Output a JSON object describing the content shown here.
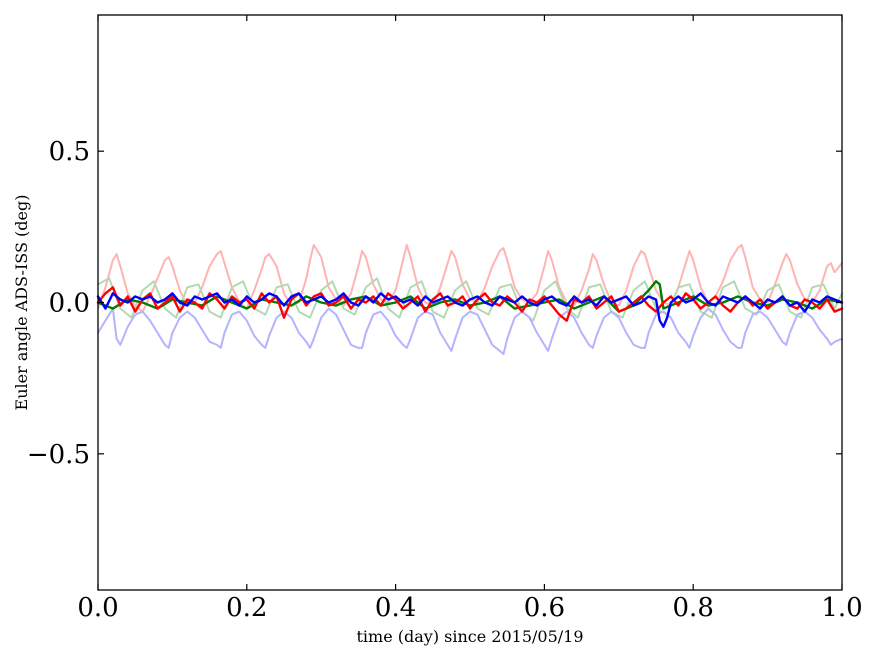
{
  "chart_data": {
    "type": "line",
    "title": "",
    "xlabel": "time (day) since 2015/05/19",
    "ylabel": "Euler angle ADS-ISS (deg)",
    "xlim": [
      0.0,
      1.0
    ],
    "ylim": [
      -0.95,
      0.95
    ],
    "xticks": [
      0.0,
      0.2,
      0.4,
      0.6,
      0.8,
      1.0
    ],
    "xtick_labels": [
      "0.0",
      "0.2",
      "0.4",
      "0.6",
      "0.8",
      "1.0"
    ],
    "yticks": [
      -0.5,
      0.0,
      0.5
    ],
    "ytick_labels": [
      "−0.5",
      "0.0",
      "0.5"
    ],
    "grid": false,
    "legend": "none",
    "series": [
      {
        "color": "#ffb3b3",
        "opacity": 1.0,
        "line_width": 2,
        "x": [
          0.0,
          0.01,
          0.02,
          0.025,
          0.03,
          0.04,
          0.05,
          0.06,
          0.07,
          0.08,
          0.09,
          0.095,
          0.1,
          0.11,
          0.12,
          0.13,
          0.14,
          0.15,
          0.16,
          0.165,
          0.17,
          0.18,
          0.19,
          0.2,
          0.21,
          0.22,
          0.225,
          0.23,
          0.24,
          0.25,
          0.26,
          0.27,
          0.28,
          0.285,
          0.29,
          0.3,
          0.31,
          0.32,
          0.33,
          0.34,
          0.35,
          0.355,
          0.36,
          0.37,
          0.38,
          0.39,
          0.4,
          0.41,
          0.415,
          0.42,
          0.43,
          0.44,
          0.45,
          0.46,
          0.47,
          0.475,
          0.48,
          0.49,
          0.5,
          0.51,
          0.52,
          0.53,
          0.54,
          0.545,
          0.55,
          0.56,
          0.57,
          0.58,
          0.59,
          0.6,
          0.605,
          0.61,
          0.62,
          0.63,
          0.64,
          0.65,
          0.66,
          0.665,
          0.67,
          0.68,
          0.69,
          0.7,
          0.71,
          0.72,
          0.73,
          0.735,
          0.74,
          0.75,
          0.76,
          0.77,
          0.78,
          0.79,
          0.795,
          0.8,
          0.81,
          0.82,
          0.83,
          0.84,
          0.85,
          0.86,
          0.865,
          0.87,
          0.88,
          0.89,
          0.9,
          0.91,
          0.92,
          0.925,
          0.93,
          0.94,
          0.95,
          0.96,
          0.97,
          0.98,
          0.985,
          0.99,
          1.0
        ],
        "y": [
          -0.02,
          0.05,
          0.14,
          0.16,
          0.12,
          0.03,
          -0.01,
          -0.03,
          0.02,
          0.08,
          0.14,
          0.15,
          0.12,
          0.04,
          -0.01,
          0.0,
          0.05,
          0.12,
          0.16,
          0.17,
          0.13,
          0.05,
          0.0,
          -0.02,
          0.04,
          0.11,
          0.15,
          0.16,
          0.12,
          0.03,
          -0.01,
          0.0,
          0.08,
          0.14,
          0.19,
          0.15,
          0.05,
          0.01,
          -0.01,
          0.03,
          0.12,
          0.17,
          0.15,
          0.06,
          0.01,
          0.0,
          0.04,
          0.14,
          0.19,
          0.15,
          0.05,
          0.0,
          -0.01,
          0.05,
          0.13,
          0.17,
          0.15,
          0.06,
          0.01,
          0.0,
          0.05,
          0.12,
          0.17,
          0.18,
          0.14,
          0.05,
          0.01,
          0.0,
          0.03,
          0.12,
          0.17,
          0.14,
          0.05,
          0.0,
          -0.01,
          0.04,
          0.11,
          0.16,
          0.14,
          0.06,
          0.0,
          -0.01,
          0.04,
          0.12,
          0.17,
          0.16,
          0.12,
          0.04,
          0.0,
          -0.01,
          0.05,
          0.13,
          0.17,
          0.14,
          0.05,
          0.0,
          0.02,
          0.07,
          0.14,
          0.18,
          0.19,
          0.15,
          0.05,
          0.01,
          0.0,
          0.06,
          0.13,
          0.16,
          0.14,
          0.06,
          0.01,
          0.0,
          0.04,
          0.12,
          0.13,
          0.1,
          0.13
        ]
      },
      {
        "color": "#b3d9b3",
        "opacity": 1.0,
        "line_width": 2,
        "x": [
          0.0,
          0.015,
          0.03,
          0.045,
          0.06,
          0.075,
          0.09,
          0.105,
          0.12,
          0.135,
          0.15,
          0.165,
          0.18,
          0.195,
          0.21,
          0.225,
          0.24,
          0.255,
          0.27,
          0.285,
          0.3,
          0.315,
          0.33,
          0.345,
          0.36,
          0.375,
          0.39,
          0.405,
          0.42,
          0.435,
          0.45,
          0.465,
          0.48,
          0.495,
          0.51,
          0.525,
          0.54,
          0.555,
          0.57,
          0.585,
          0.6,
          0.615,
          0.63,
          0.645,
          0.66,
          0.675,
          0.69,
          0.705,
          0.72,
          0.735,
          0.75,
          0.765,
          0.78,
          0.795,
          0.81,
          0.825,
          0.84,
          0.855,
          0.87,
          0.885,
          0.9,
          0.915,
          0.93,
          0.945,
          0.96,
          0.975,
          0.99,
          1.0
        ],
        "y": [
          0.06,
          0.08,
          -0.02,
          -0.05,
          0.04,
          0.07,
          -0.02,
          -0.05,
          0.05,
          0.06,
          -0.03,
          -0.05,
          0.05,
          0.07,
          -0.02,
          -0.04,
          0.05,
          0.06,
          -0.03,
          -0.05,
          0.04,
          0.07,
          -0.02,
          -0.04,
          0.05,
          0.08,
          -0.02,
          -0.05,
          0.05,
          0.07,
          -0.03,
          -0.05,
          0.04,
          0.07,
          -0.02,
          -0.04,
          0.05,
          0.06,
          -0.03,
          -0.06,
          0.04,
          0.07,
          -0.02,
          -0.05,
          0.05,
          0.06,
          -0.03,
          -0.05,
          0.04,
          0.07,
          -0.02,
          -0.04,
          0.05,
          0.06,
          -0.03,
          -0.05,
          0.05,
          0.07,
          -0.02,
          -0.04,
          0.04,
          0.06,
          -0.03,
          -0.05,
          0.05,
          0.06,
          -0.02,
          0.03
        ]
      },
      {
        "color": "#b3b3ff",
        "opacity": 1.0,
        "line_width": 2,
        "x": [
          0.0,
          0.01,
          0.02,
          0.025,
          0.03,
          0.04,
          0.05,
          0.06,
          0.07,
          0.08,
          0.09,
          0.095,
          0.1,
          0.11,
          0.12,
          0.13,
          0.14,
          0.15,
          0.16,
          0.165,
          0.17,
          0.18,
          0.19,
          0.2,
          0.21,
          0.22,
          0.225,
          0.23,
          0.24,
          0.25,
          0.26,
          0.27,
          0.28,
          0.285,
          0.29,
          0.3,
          0.31,
          0.32,
          0.33,
          0.34,
          0.35,
          0.355,
          0.36,
          0.37,
          0.38,
          0.39,
          0.4,
          0.41,
          0.415,
          0.42,
          0.43,
          0.44,
          0.45,
          0.46,
          0.47,
          0.475,
          0.48,
          0.49,
          0.5,
          0.51,
          0.52,
          0.53,
          0.54,
          0.545,
          0.55,
          0.56,
          0.57,
          0.58,
          0.59,
          0.6,
          0.605,
          0.61,
          0.62,
          0.63,
          0.64,
          0.65,
          0.66,
          0.665,
          0.67,
          0.68,
          0.69,
          0.7,
          0.71,
          0.72,
          0.73,
          0.735,
          0.74,
          0.75,
          0.76,
          0.77,
          0.78,
          0.79,
          0.795,
          0.8,
          0.81,
          0.82,
          0.83,
          0.84,
          0.85,
          0.86,
          0.865,
          0.87,
          0.88,
          0.89,
          0.9,
          0.91,
          0.92,
          0.925,
          0.93,
          0.94,
          0.95,
          0.96,
          0.97,
          0.98,
          0.985,
          0.99,
          1.0
        ],
        "y": [
          -0.1,
          -0.06,
          -0.02,
          -0.12,
          -0.14,
          -0.08,
          -0.04,
          -0.03,
          -0.06,
          -0.1,
          -0.14,
          -0.15,
          -0.1,
          -0.05,
          -0.03,
          -0.05,
          -0.09,
          -0.13,
          -0.14,
          -0.15,
          -0.1,
          -0.04,
          -0.03,
          -0.06,
          -0.11,
          -0.14,
          -0.15,
          -0.11,
          -0.05,
          -0.03,
          -0.05,
          -0.1,
          -0.13,
          -0.15,
          -0.12,
          -0.05,
          -0.02,
          -0.04,
          -0.09,
          -0.14,
          -0.15,
          -0.15,
          -0.1,
          -0.04,
          -0.03,
          -0.06,
          -0.11,
          -0.14,
          -0.15,
          -0.12,
          -0.05,
          -0.03,
          -0.04,
          -0.1,
          -0.14,
          -0.16,
          -0.12,
          -0.05,
          -0.03,
          -0.04,
          -0.09,
          -0.14,
          -0.16,
          -0.17,
          -0.12,
          -0.05,
          -0.03,
          -0.05,
          -0.1,
          -0.14,
          -0.16,
          -0.12,
          -0.05,
          -0.03,
          -0.05,
          -0.1,
          -0.14,
          -0.15,
          -0.11,
          -0.05,
          -0.03,
          -0.05,
          -0.1,
          -0.14,
          -0.15,
          -0.15,
          -0.1,
          -0.04,
          -0.03,
          -0.05,
          -0.1,
          -0.13,
          -0.15,
          -0.11,
          -0.05,
          -0.02,
          -0.04,
          -0.09,
          -0.13,
          -0.15,
          -0.15,
          -0.1,
          -0.04,
          -0.03,
          -0.05,
          -0.09,
          -0.13,
          -0.14,
          -0.1,
          -0.04,
          -0.03,
          -0.05,
          -0.09,
          -0.12,
          -0.14,
          -0.13,
          -0.12
        ]
      },
      {
        "color": "#008000",
        "opacity": 1.0,
        "line_width": 2.4,
        "x": [
          0.0,
          0.02,
          0.04,
          0.06,
          0.08,
          0.1,
          0.12,
          0.14,
          0.16,
          0.18,
          0.2,
          0.22,
          0.24,
          0.26,
          0.28,
          0.3,
          0.32,
          0.34,
          0.36,
          0.38,
          0.4,
          0.42,
          0.44,
          0.46,
          0.48,
          0.5,
          0.52,
          0.54,
          0.56,
          0.58,
          0.6,
          0.62,
          0.64,
          0.66,
          0.68,
          0.7,
          0.72,
          0.74,
          0.75,
          0.755,
          0.76,
          0.78,
          0.8,
          0.82,
          0.84,
          0.86,
          0.88,
          0.9,
          0.92,
          0.94,
          0.96,
          0.98,
          1.0
        ],
        "y": [
          0.0,
          -0.02,
          0.01,
          0.0,
          -0.02,
          0.01,
          0.0,
          -0.01,
          0.02,
          0.0,
          -0.02,
          0.01,
          0.0,
          -0.01,
          0.02,
          0.0,
          -0.01,
          0.01,
          0.02,
          -0.01,
          0.0,
          0.02,
          -0.02,
          0.0,
          0.01,
          -0.01,
          0.0,
          0.02,
          -0.02,
          -0.01,
          0.0,
          0.01,
          -0.02,
          0.0,
          0.02,
          -0.03,
          -0.01,
          0.04,
          0.07,
          0.06,
          -0.02,
          0.0,
          0.02,
          -0.01,
          0.0,
          0.02,
          0.0,
          -0.01,
          0.01,
          0.0,
          -0.02,
          0.01,
          0.0
        ]
      },
      {
        "color": "#ff0000",
        "opacity": 1.0,
        "line_width": 2.4,
        "x": [
          0.0,
          0.01,
          0.02,
          0.03,
          0.04,
          0.05,
          0.06,
          0.07,
          0.08,
          0.09,
          0.1,
          0.11,
          0.12,
          0.13,
          0.14,
          0.15,
          0.16,
          0.17,
          0.18,
          0.19,
          0.2,
          0.21,
          0.22,
          0.23,
          0.24,
          0.25,
          0.26,
          0.27,
          0.28,
          0.29,
          0.3,
          0.31,
          0.32,
          0.33,
          0.34,
          0.35,
          0.36,
          0.37,
          0.38,
          0.39,
          0.4,
          0.41,
          0.42,
          0.43,
          0.44,
          0.45,
          0.46,
          0.47,
          0.48,
          0.49,
          0.5,
          0.51,
          0.52,
          0.53,
          0.54,
          0.55,
          0.56,
          0.57,
          0.58,
          0.59,
          0.6,
          0.61,
          0.62,
          0.63,
          0.64,
          0.65,
          0.66,
          0.67,
          0.68,
          0.69,
          0.7,
          0.71,
          0.72,
          0.73,
          0.74,
          0.75,
          0.76,
          0.77,
          0.78,
          0.79,
          0.8,
          0.81,
          0.82,
          0.83,
          0.84,
          0.85,
          0.86,
          0.87,
          0.88,
          0.89,
          0.9,
          0.91,
          0.92,
          0.93,
          0.94,
          0.95,
          0.96,
          0.97,
          0.98,
          0.99,
          1.0
        ],
        "y": [
          0.0,
          0.03,
          0.05,
          -0.01,
          0.02,
          -0.03,
          0.01,
          0.03,
          -0.02,
          0.0,
          0.02,
          -0.03,
          0.01,
          0.0,
          -0.02,
          0.03,
          0.01,
          -0.02,
          0.02,
          0.0,
          0.01,
          -0.02,
          0.03,
          0.0,
          0.02,
          -0.05,
          0.01,
          0.03,
          -0.01,
          0.02,
          0.03,
          -0.01,
          0.0,
          0.02,
          -0.02,
          0.01,
          0.0,
          0.02,
          -0.01,
          0.03,
          0.01,
          -0.02,
          0.0,
          0.02,
          -0.03,
          0.01,
          0.03,
          -0.01,
          0.0,
          0.02,
          -0.02,
          0.01,
          0.03,
          0.0,
          -0.01,
          0.02,
          0.0,
          -0.03,
          0.01,
          0.0,
          0.02,
          -0.01,
          -0.04,
          -0.06,
          0.01,
          0.0,
          0.02,
          -0.02,
          0.0,
          0.02,
          -0.03,
          -0.02,
          0.0,
          0.02,
          -0.01,
          -0.03,
          0.0,
          0.02,
          -0.01,
          0.03,
          0.01,
          -0.02,
          0.0,
          0.02,
          -0.01,
          -0.03,
          0.0,
          0.02,
          -0.01,
          0.01,
          -0.02,
          0.0,
          0.02,
          -0.01,
          -0.02,
          0.01,
          0.0,
          -0.02,
          0.01,
          -0.03,
          -0.02
        ]
      },
      {
        "color": "#0000ff",
        "opacity": 1.0,
        "line_width": 2.4,
        "x": [
          0.0,
          0.01,
          0.02,
          0.03,
          0.04,
          0.05,
          0.06,
          0.07,
          0.08,
          0.09,
          0.1,
          0.11,
          0.12,
          0.13,
          0.14,
          0.15,
          0.16,
          0.17,
          0.18,
          0.19,
          0.2,
          0.21,
          0.22,
          0.23,
          0.24,
          0.25,
          0.26,
          0.27,
          0.28,
          0.29,
          0.3,
          0.31,
          0.32,
          0.33,
          0.34,
          0.35,
          0.36,
          0.37,
          0.38,
          0.39,
          0.4,
          0.41,
          0.42,
          0.43,
          0.44,
          0.45,
          0.46,
          0.47,
          0.48,
          0.49,
          0.5,
          0.51,
          0.52,
          0.53,
          0.54,
          0.55,
          0.56,
          0.57,
          0.58,
          0.59,
          0.6,
          0.61,
          0.62,
          0.63,
          0.64,
          0.65,
          0.66,
          0.67,
          0.68,
          0.69,
          0.7,
          0.71,
          0.72,
          0.73,
          0.74,
          0.75,
          0.755,
          0.76,
          0.765,
          0.77,
          0.78,
          0.79,
          0.8,
          0.81,
          0.82,
          0.83,
          0.84,
          0.85,
          0.86,
          0.87,
          0.88,
          0.89,
          0.9,
          0.91,
          0.92,
          0.93,
          0.94,
          0.95,
          0.96,
          0.97,
          0.98,
          0.99,
          1.0
        ],
        "y": [
          0.02,
          -0.02,
          0.03,
          0.01,
          0.0,
          0.02,
          0.01,
          0.02,
          0.0,
          0.01,
          0.03,
          0.0,
          -0.01,
          0.02,
          0.01,
          0.02,
          0.03,
          0.0,
          0.01,
          -0.01,
          0.02,
          0.0,
          0.01,
          0.03,
          0.02,
          -0.01,
          0.02,
          0.03,
          0.0,
          0.01,
          0.02,
          0.0,
          0.01,
          0.03,
          0.0,
          -0.01,
          0.02,
          0.0,
          0.03,
          0.01,
          0.02,
          0.0,
          0.01,
          -0.01,
          0.02,
          0.0,
          0.01,
          0.02,
          0.0,
          -0.01,
          0.01,
          0.02,
          0.0,
          -0.01,
          0.02,
          0.01,
          0.0,
          0.02,
          0.0,
          -0.01,
          0.01,
          0.02,
          0.0,
          -0.01,
          0.02,
          0.0,
          0.01,
          -0.01,
          0.02,
          0.0,
          0.01,
          0.02,
          -0.01,
          0.0,
          0.02,
          0.01,
          -0.06,
          -0.08,
          -0.05,
          0.0,
          0.02,
          0.0,
          0.01,
          0.03,
          0.0,
          -0.01,
          0.02,
          0.01,
          0.0,
          0.02,
          0.0,
          -0.02,
          0.01,
          0.0,
          0.02,
          -0.01,
          0.0,
          -0.03,
          0.01,
          0.0,
          0.02,
          0.01,
          0.0
        ]
      }
    ]
  }
}
